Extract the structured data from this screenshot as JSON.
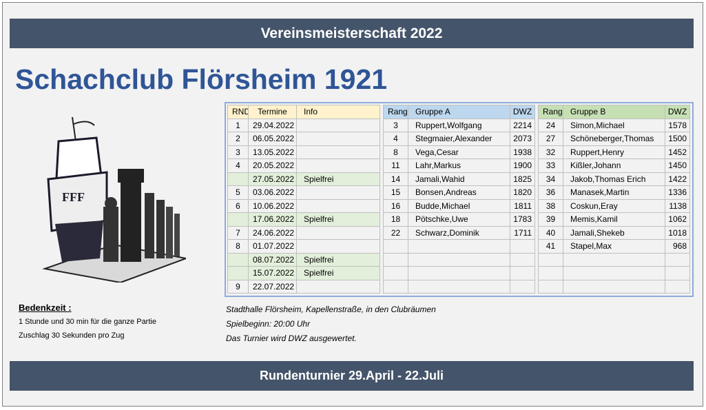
{
  "header": {
    "banner": "Vereinsmeisterschaft 2022",
    "title": "Schachclub Flörsheim 1921",
    "logo_text": "FFF"
  },
  "schedule": {
    "headers": [
      "RND",
      "Termine",
      "Info"
    ],
    "rows": [
      [
        "1",
        "29.04.2022",
        ""
      ],
      [
        "2",
        "06.05.2022",
        ""
      ],
      [
        "3",
        "13.05.2022",
        ""
      ],
      [
        "4",
        "20.05.2022",
        ""
      ],
      [
        "",
        "27.05.2022",
        "Spielfrei"
      ],
      [
        "5",
        "03.06.2022",
        ""
      ],
      [
        "6",
        "10.06.2022",
        ""
      ],
      [
        "",
        "17.06.2022",
        "Spielfrei"
      ],
      [
        "7",
        "24.06.2022",
        ""
      ],
      [
        "8",
        "01.07.2022",
        ""
      ],
      [
        "",
        "08.07.2022",
        "Spielfrei"
      ],
      [
        "",
        "15.07.2022",
        "Spielfrei"
      ],
      [
        "9",
        "22.07.2022",
        ""
      ]
    ]
  },
  "group_a": {
    "headers": [
      "Rang",
      "Gruppe A",
      "DWZ"
    ],
    "rows": [
      [
        "3",
        "Ruppert,Wolfgang",
        "2214"
      ],
      [
        "4",
        "Stegmaier,Alexander",
        "2073"
      ],
      [
        "8",
        "Vega,Cesar",
        "1938"
      ],
      [
        "11",
        "Lahr,Markus",
        "1900"
      ],
      [
        "14",
        "Jamali,Wahid",
        "1825"
      ],
      [
        "15",
        "Bonsen,Andreas",
        "1820"
      ],
      [
        "16",
        "Budde,Michael",
        "1811"
      ],
      [
        "18",
        "Pötschke,Uwe",
        "1783"
      ],
      [
        "22",
        "Schwarz,Dominik",
        "1711"
      ],
      [
        "",
        "",
        ""
      ],
      [
        "",
        "",
        ""
      ],
      [
        "",
        "",
        ""
      ],
      [
        "",
        "",
        ""
      ]
    ]
  },
  "group_b": {
    "headers": [
      "Rang",
      "Gruppe B",
      "DWZ"
    ],
    "rows": [
      [
        "24",
        "Simon,Michael",
        "1578"
      ],
      [
        "27",
        "Schöneberger,Thomas",
        "1500"
      ],
      [
        "32",
        "Ruppert,Henry",
        "1452"
      ],
      [
        "33",
        "Kißler,Johann",
        "1450"
      ],
      [
        "34",
        "Jakob,Thomas Erich",
        "1422"
      ],
      [
        "36",
        "Manasek,Martin",
        "1336"
      ],
      [
        "38",
        "Coskun,Eray",
        "1138"
      ],
      [
        "39",
        "Memis,Kamil",
        "1062"
      ],
      [
        "40",
        "Jamali,Shekeb",
        "1018"
      ],
      [
        "41",
        "Stapel,Max",
        "968"
      ],
      [
        "",
        "",
        ""
      ],
      [
        "",
        "",
        ""
      ],
      [
        "",
        "",
        ""
      ]
    ]
  },
  "bedenkzeit": {
    "heading": "Bedenkzeit :",
    "lines": [
      "1 Stunde und 30 min für die ganze Partie",
      "Zuschlag 30 Sekunden pro Zug"
    ]
  },
  "location": {
    "lines": [
      "Stadthalle Flörsheim, Kapellenstraße, in den Clubräumen",
      "Spielbeginn: 20:00 Uhr",
      "Das Turnier wird DWZ ausgewertet."
    ]
  },
  "footer": {
    "banner": "Rundenturnier 29.April - 22.Juli"
  },
  "colors": {
    "banner": "#44546a",
    "title": "#2f5597",
    "spielfrei": "#e2efda"
  }
}
